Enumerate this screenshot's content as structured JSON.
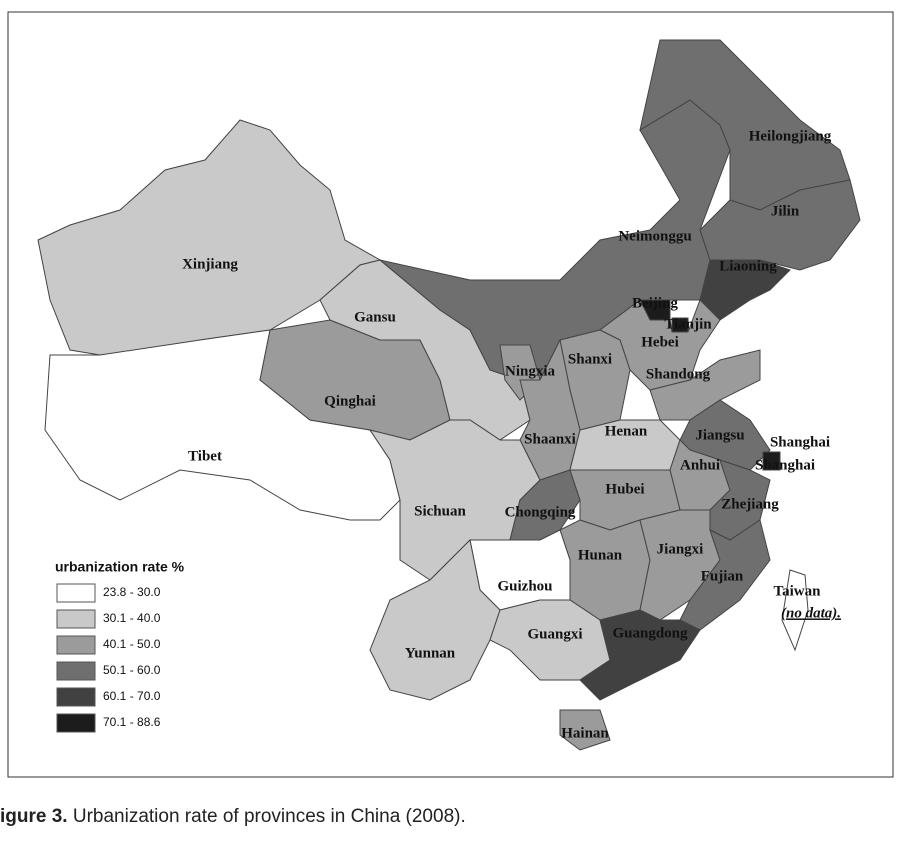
{
  "map": {
    "legend": {
      "title": "urbanization rate %",
      "classes": [
        {
          "label": "23.8 - 30.0",
          "color": "#ffffff"
        },
        {
          "label": "30.1 - 40.0",
          "color": "#c9c9c9"
        },
        {
          "label": "40.1 - 50.0",
          "color": "#9b9b9b"
        },
        {
          "label": "50.1 - 60.0",
          "color": "#6f6f6f"
        },
        {
          "label": "60.1 - 70.0",
          "color": "#414141"
        },
        {
          "label": "70.1 - 88.6",
          "color": "#1c1c1c"
        }
      ]
    },
    "regions": [
      {
        "name": "Xinjiang",
        "color": "#c9c9c9"
      },
      {
        "name": "Tibet",
        "color": "#ffffff"
      },
      {
        "name": "Qinghai",
        "color": "#9b9b9b"
      },
      {
        "name": "Gansu",
        "color": "#c9c9c9"
      },
      {
        "name": "Neimonggu",
        "color": "#6f6f6f"
      },
      {
        "name": "Heilongjiang",
        "color": "#6f6f6f"
      },
      {
        "name": "Jilin",
        "color": "#6f6f6f"
      },
      {
        "name": "Liaoning",
        "color": "#414141"
      },
      {
        "name": "Beijing",
        "color": "#1c1c1c"
      },
      {
        "name": "Tianjin",
        "color": "#1c1c1c"
      },
      {
        "name": "Hebei",
        "color": "#9b9b9b"
      },
      {
        "name": "Shanxi",
        "color": "#9b9b9b"
      },
      {
        "name": "Ningxia",
        "color": "#9b9b9b"
      },
      {
        "name": "Shandong",
        "color": "#9b9b9b"
      },
      {
        "name": "Shaanxi",
        "color": "#9b9b9b"
      },
      {
        "name": "Henan",
        "color": "#c9c9c9"
      },
      {
        "name": "Jiangsu",
        "color": "#6f6f6f"
      },
      {
        "name": "Shanghai",
        "color": "#1c1c1c"
      },
      {
        "name": "Anhui",
        "color": "#9b9b9b"
      },
      {
        "name": "Sichuan",
        "color": "#c9c9c9"
      },
      {
        "name": "Chongqing",
        "color": "#6f6f6f"
      },
      {
        "name": "Hubei",
        "color": "#9b9b9b"
      },
      {
        "name": "Zhejiang",
        "color": "#6f6f6f"
      },
      {
        "name": "Hunan",
        "color": "#9b9b9b"
      },
      {
        "name": "Jiangxi",
        "color": "#9b9b9b"
      },
      {
        "name": "Fujian",
        "color": "#6f6f6f"
      },
      {
        "name": "Guizhou",
        "color": "#ffffff"
      },
      {
        "name": "Yunnan",
        "color": "#c9c9c9"
      },
      {
        "name": "Guangxi",
        "color": "#c9c9c9"
      },
      {
        "name": "Guangdong",
        "color": "#414141"
      },
      {
        "name": "Hainan",
        "color": "#9b9b9b"
      },
      {
        "name": "Taiwan",
        "color": "#ffffff",
        "note": "(no data)."
      }
    ],
    "extra_labels": [
      "Shanghai"
    ]
  },
  "caption": {
    "label": "igure 3.",
    "text": "Urbanization rate of provinces in China (2008)."
  }
}
